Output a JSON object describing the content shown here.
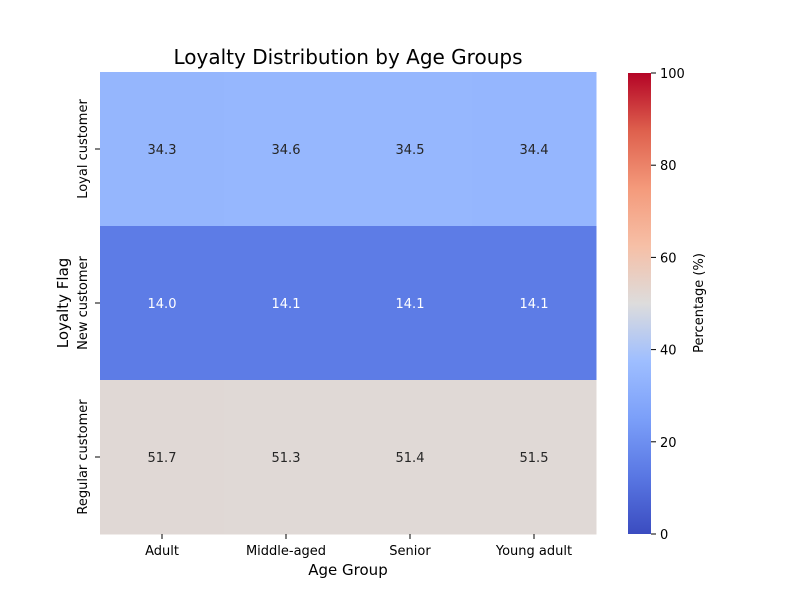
{
  "chart_data": {
    "type": "heatmap",
    "title": "Loyalty Distribution by Age Groups",
    "xlabel": "Age Group",
    "ylabel": "Loyalty Flag",
    "x_categories": [
      "Adult",
      "Middle-aged",
      "Senior",
      "Young adult"
    ],
    "y_categories": [
      "Loyal customer",
      "New customer",
      "Regular customer"
    ],
    "values": [
      [
        34.3,
        34.6,
        34.5,
        34.4
      ],
      [
        14.0,
        14.1,
        14.1,
        14.1
      ],
      [
        51.7,
        51.3,
        51.4,
        51.5
      ]
    ],
    "value_labels": [
      [
        "34.3",
        "34.6",
        "34.5",
        "34.4"
      ],
      [
        "14.0",
        "14.1",
        "14.1",
        "14.1"
      ],
      [
        "51.7",
        "51.3",
        "51.4",
        "51.5"
      ]
    ],
    "colorbar": {
      "label": "Percentage (%)",
      "range": [
        0,
        100
      ],
      "ticks": [
        0,
        20,
        40,
        60,
        80,
        100
      ],
      "tick_labels": [
        "0",
        "20",
        "40",
        "60",
        "80",
        "100"
      ],
      "colormap": "coolwarm"
    }
  }
}
